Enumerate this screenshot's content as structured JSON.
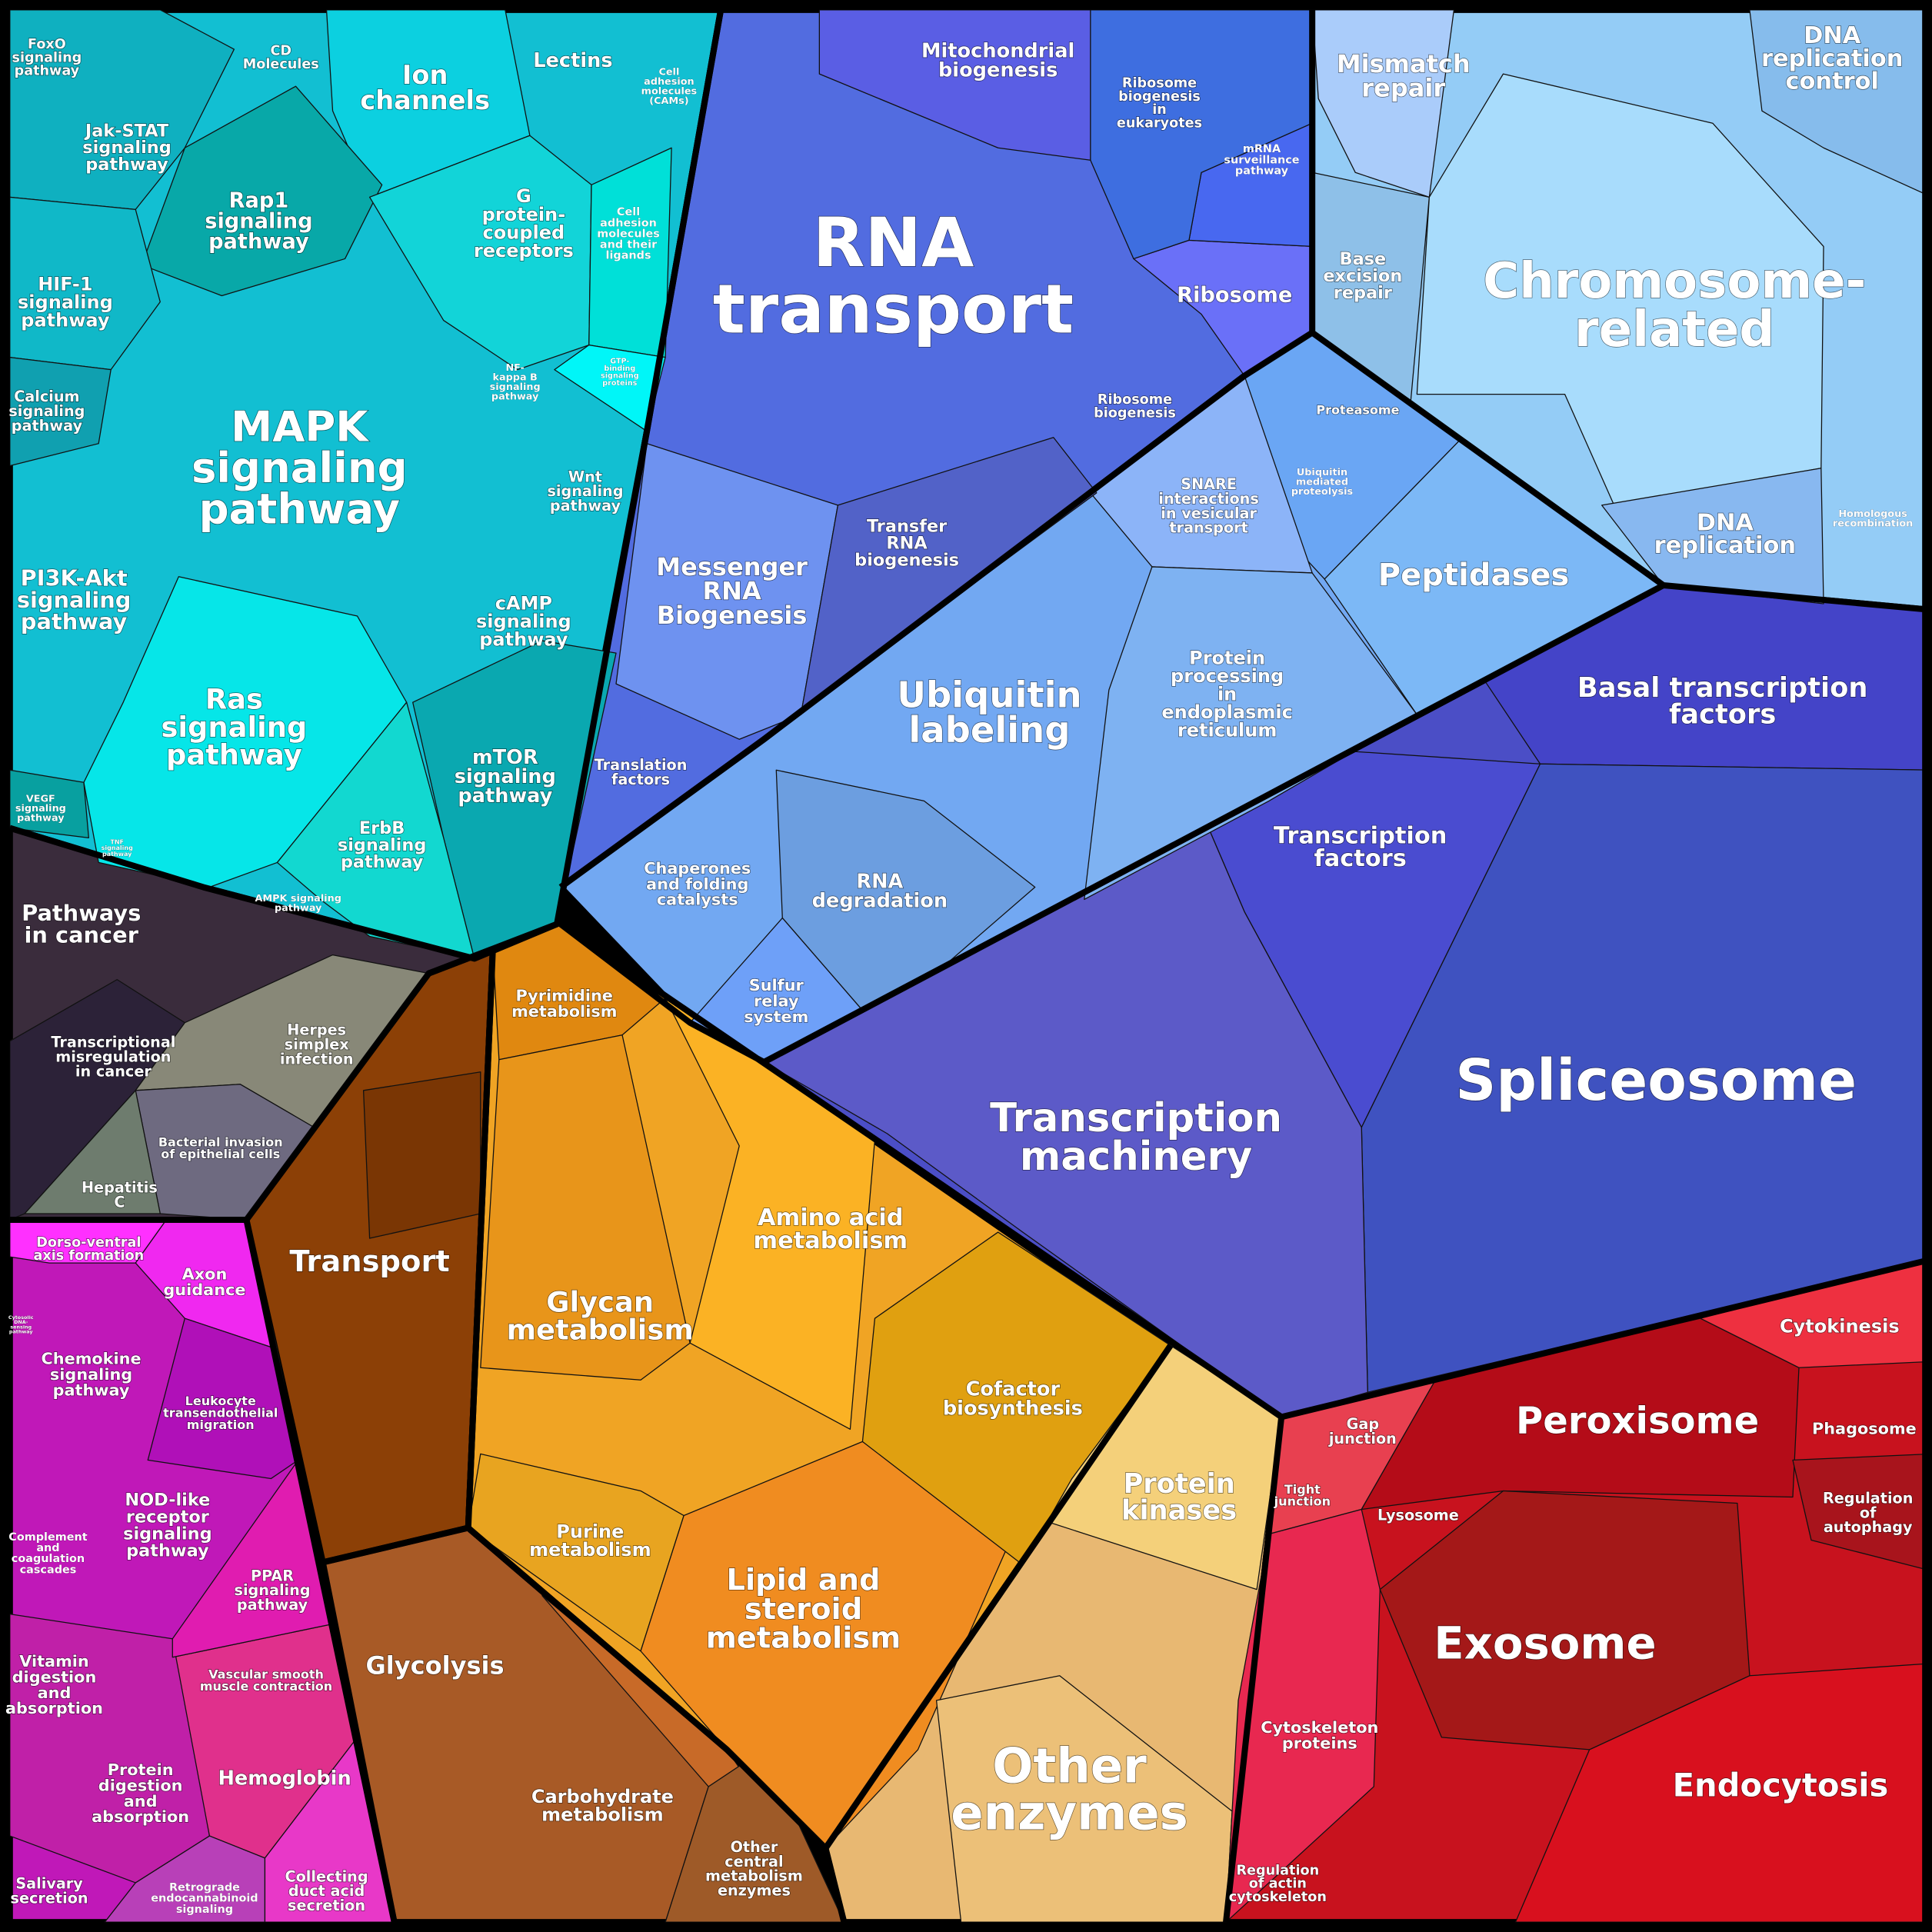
{
  "labels": [
    [
      "FoxO",
      "signaling",
      "pathway"
    ],
    [
      "CD",
      "Molecules"
    ],
    [
      "Ion",
      "channels"
    ],
    [
      "Lectins"
    ],
    [
      "Cell",
      "adhesion",
      "molecules",
      "(CAMs)"
    ],
    [
      "Jak-STAT",
      "signaling",
      "pathway"
    ],
    [
      "Rap1",
      "signaling",
      "pathway"
    ],
    [
      "G",
      "protein-",
      "coupled",
      "receptors"
    ],
    [
      "Cell",
      "adhesion",
      "molecules",
      "and their",
      "ligands"
    ],
    [
      "HIF-1",
      "signaling",
      "pathway"
    ],
    [
      "NF-",
      "kappa B",
      "signaling",
      "pathway"
    ],
    [
      "GTP-",
      "binding",
      "signaling",
      "proteins"
    ],
    [
      "Calcium",
      "signaling",
      "pathway"
    ],
    [
      "MAPK",
      "signaling",
      "pathway"
    ],
    [
      "Wnt",
      "signaling",
      "pathway"
    ],
    [
      "PI3K-Akt",
      "signaling",
      "pathway"
    ],
    [
      "cAMP",
      "signaling",
      "pathway"
    ],
    [
      "Ras",
      "signaling",
      "pathway"
    ],
    [
      "mTOR",
      "signaling",
      "pathway"
    ],
    [
      "ErbB",
      "signaling",
      "pathway"
    ],
    [
      "VEGF",
      "signaling",
      "pathway"
    ],
    [
      "TNF",
      "signaling",
      "pathway"
    ],
    [
      "AMPK signaling",
      "pathway"
    ],
    [
      "Pathways",
      "in cancer"
    ],
    [
      "Transcriptional",
      "misregulation",
      "in cancer"
    ],
    [
      "Herpes",
      "simplex",
      "infection"
    ],
    [
      "Bacterial invasion",
      "of epithelial cells"
    ],
    [
      "Hepatitis",
      "C"
    ],
    [
      "Dorso-ventral",
      "axis formation"
    ],
    [
      "Axon",
      "guidance"
    ],
    [
      "Cytosolic",
      "DNA-",
      "sensing",
      "pathway"
    ],
    [
      "Chemokine",
      "signaling",
      "pathway"
    ],
    [
      "Leukocyte",
      "transendothelial",
      "migration"
    ],
    [
      "NOD-like",
      "receptor",
      "signaling",
      "pathway"
    ],
    [
      "Complement",
      "and",
      "coagulation",
      "cascades"
    ],
    [
      "PPAR",
      "signaling",
      "pathway"
    ],
    [
      "Vitamin",
      "digestion",
      "and",
      "absorption"
    ],
    [
      "Vascular smooth",
      "muscle contraction"
    ],
    [
      "Hemoglobin"
    ],
    [
      "Protein",
      "digestion",
      "and",
      "absorption"
    ],
    [
      "Salivary",
      "secretion"
    ],
    [
      "Retrograde",
      "endocannabinoid",
      "signaling"
    ],
    [
      "Collecting",
      "duct acid",
      "secretion"
    ],
    [
      "Transport"
    ],
    [
      "Glycolysis"
    ],
    [
      "Carbohydrate",
      "metabolism"
    ],
    [
      "Other",
      "central",
      "metabolism",
      "enzymes"
    ],
    [
      "Pyrimidine",
      "metabolism"
    ],
    [
      "Amino acid",
      "metabolism"
    ],
    [
      "Glycan",
      "metabolism"
    ],
    [
      "Cofactor",
      "biosynthesis"
    ],
    [
      "Purine",
      "metabolism"
    ],
    [
      "Lipid and",
      "steroid",
      "metabolism"
    ],
    [
      "Protein",
      "kinases"
    ],
    [
      "Other",
      "enzymes"
    ],
    [
      "Cytokinesis"
    ],
    [
      "Gap",
      "junction"
    ],
    [
      "Tight",
      "junction"
    ],
    [
      "Lysosome"
    ],
    [
      "Peroxisome"
    ],
    [
      "Phagosome"
    ],
    [
      "Regulation",
      "of",
      "autophagy"
    ],
    [
      "Exosome"
    ],
    [
      "Cytoskeleton",
      "proteins"
    ],
    [
      "Endocytosis"
    ],
    [
      "Regulation",
      "of actin",
      "cytoskeleton"
    ],
    [
      "Basal transcription",
      "factors"
    ],
    [
      "Transcription",
      "factors"
    ],
    [
      "Spliceosome"
    ],
    [
      "Transcription",
      "machinery"
    ],
    [
      "Proteasome"
    ],
    [
      "SNARE",
      "interactions",
      "in vesicular",
      "transport"
    ],
    [
      "Ubiquitin",
      "mediated",
      "proteolysis"
    ],
    [
      "Peptidases"
    ],
    [
      "Ubiquitin",
      "labeling"
    ],
    [
      "Protein",
      "processing",
      "in",
      "endoplasmic",
      "reticulum"
    ],
    [
      "Chaperones",
      "and folding",
      "catalysts"
    ],
    [
      "RNA",
      "degradation"
    ],
    [
      "Sulfur",
      "relay",
      "system"
    ],
    [
      "Mitochondrial",
      "biogenesis"
    ],
    [
      "Ribosome",
      "biogenesis",
      "in",
      "eukaryotes"
    ],
    [
      "mRNA",
      "surveillance",
      "pathway"
    ],
    [
      "RNA",
      "transport"
    ],
    [
      "Ribosome"
    ],
    [
      "Ribosome",
      "biogenesis"
    ],
    [
      "Messenger",
      "RNA",
      "Biogenesis"
    ],
    [
      "Transfer",
      "RNA",
      "biogenesis"
    ],
    [
      "Translation",
      "factors"
    ],
    [
      "Mismatch",
      "repair"
    ],
    [
      "DNA",
      "replication",
      "control"
    ],
    [
      "Base",
      "excision",
      "repair"
    ],
    [
      "Chromosome-",
      "related"
    ],
    [
      "DNA",
      "replication"
    ],
    [
      "Homologous",
      "recombination"
    ]
  ]
}
